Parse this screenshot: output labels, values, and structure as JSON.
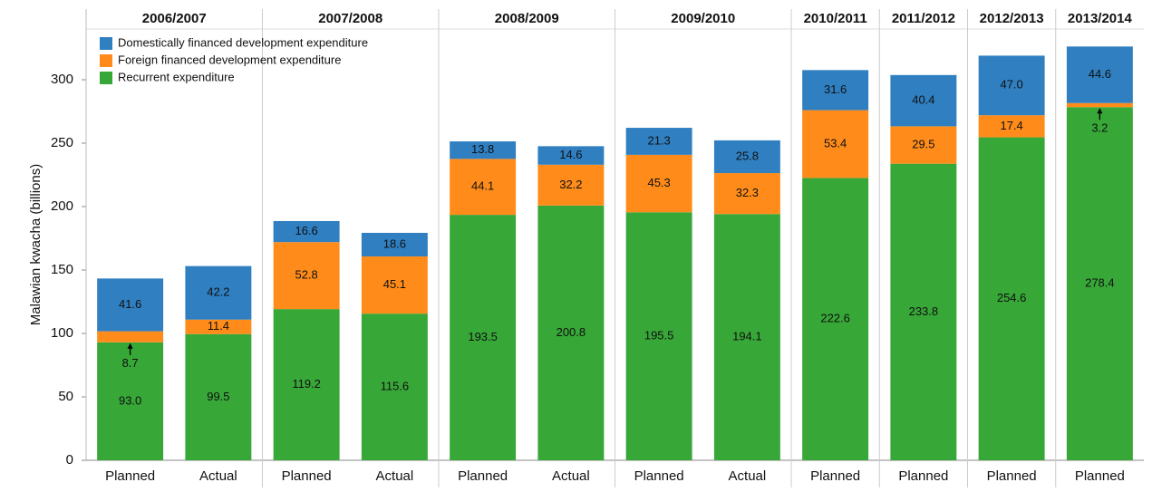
{
  "chart_data": {
    "type": "stacked_bar",
    "y_label": "Malawian kwacha (billions)",
    "groups": [
      {
        "name": "2006/2007",
        "categories": [
          "Planned",
          "Actual"
        ]
      },
      {
        "name": "2007/2008",
        "categories": [
          "Planned",
          "Actual"
        ]
      },
      {
        "name": "2008/2009",
        "categories": [
          "Planned",
          "Actual"
        ]
      },
      {
        "name": "2009/2010",
        "categories": [
          "Planned",
          "Actual"
        ]
      },
      {
        "name": "2010/2011",
        "categories": [
          "Planned"
        ]
      },
      {
        "name": "2011/2012",
        "categories": [
          "Planned"
        ]
      },
      {
        "name": "2012/2013",
        "categories": [
          "Planned"
        ]
      },
      {
        "name": "2013/2014",
        "categories": [
          "Planned"
        ]
      }
    ],
    "series": [
      {
        "name": "Recurrent expenditure",
        "color": "#37a737",
        "values": [
          93.0,
          99.5,
          119.2,
          115.6,
          193.5,
          200.8,
          195.5,
          194.1,
          222.6,
          233.8,
          254.6,
          278.4
        ],
        "value_labels": [
          "93.0",
          "99.5",
          "119.2",
          "115.6",
          "193.5",
          "200.8",
          "195.5",
          "194.1",
          "222.6",
          "233.8",
          "254.6",
          "278.4"
        ]
      },
      {
        "name": "Foreign financed development expenditure",
        "color": "#ff8c1a",
        "values": [
          8.7,
          11.4,
          52.8,
          45.1,
          44.1,
          32.2,
          45.3,
          32.3,
          53.4,
          29.5,
          17.4,
          3.2
        ],
        "value_labels": [
          "8.7",
          "11.4",
          "52.8",
          "45.1",
          "44.1",
          "32.2",
          "45.3",
          "32.3",
          "53.4",
          "29.5",
          "17.4",
          "3.2"
        ]
      },
      {
        "name": "Domestically financed development expenditure",
        "color": "#2f7fc1",
        "values": [
          41.6,
          42.2,
          16.6,
          18.6,
          13.8,
          14.6,
          21.3,
          25.8,
          31.6,
          40.4,
          47.0,
          44.6
        ],
        "value_labels": [
          "41.6",
          "42.2",
          "16.6",
          "18.6",
          "13.8",
          "14.6",
          "21.3",
          "25.8",
          "31.6",
          "40.4",
          "47.0",
          "44.6"
        ]
      }
    ],
    "ylim": [
      0,
      340
    ],
    "yticks": [
      0,
      50,
      100,
      150,
      200,
      250,
      300
    ],
    "legend": "top-left"
  }
}
